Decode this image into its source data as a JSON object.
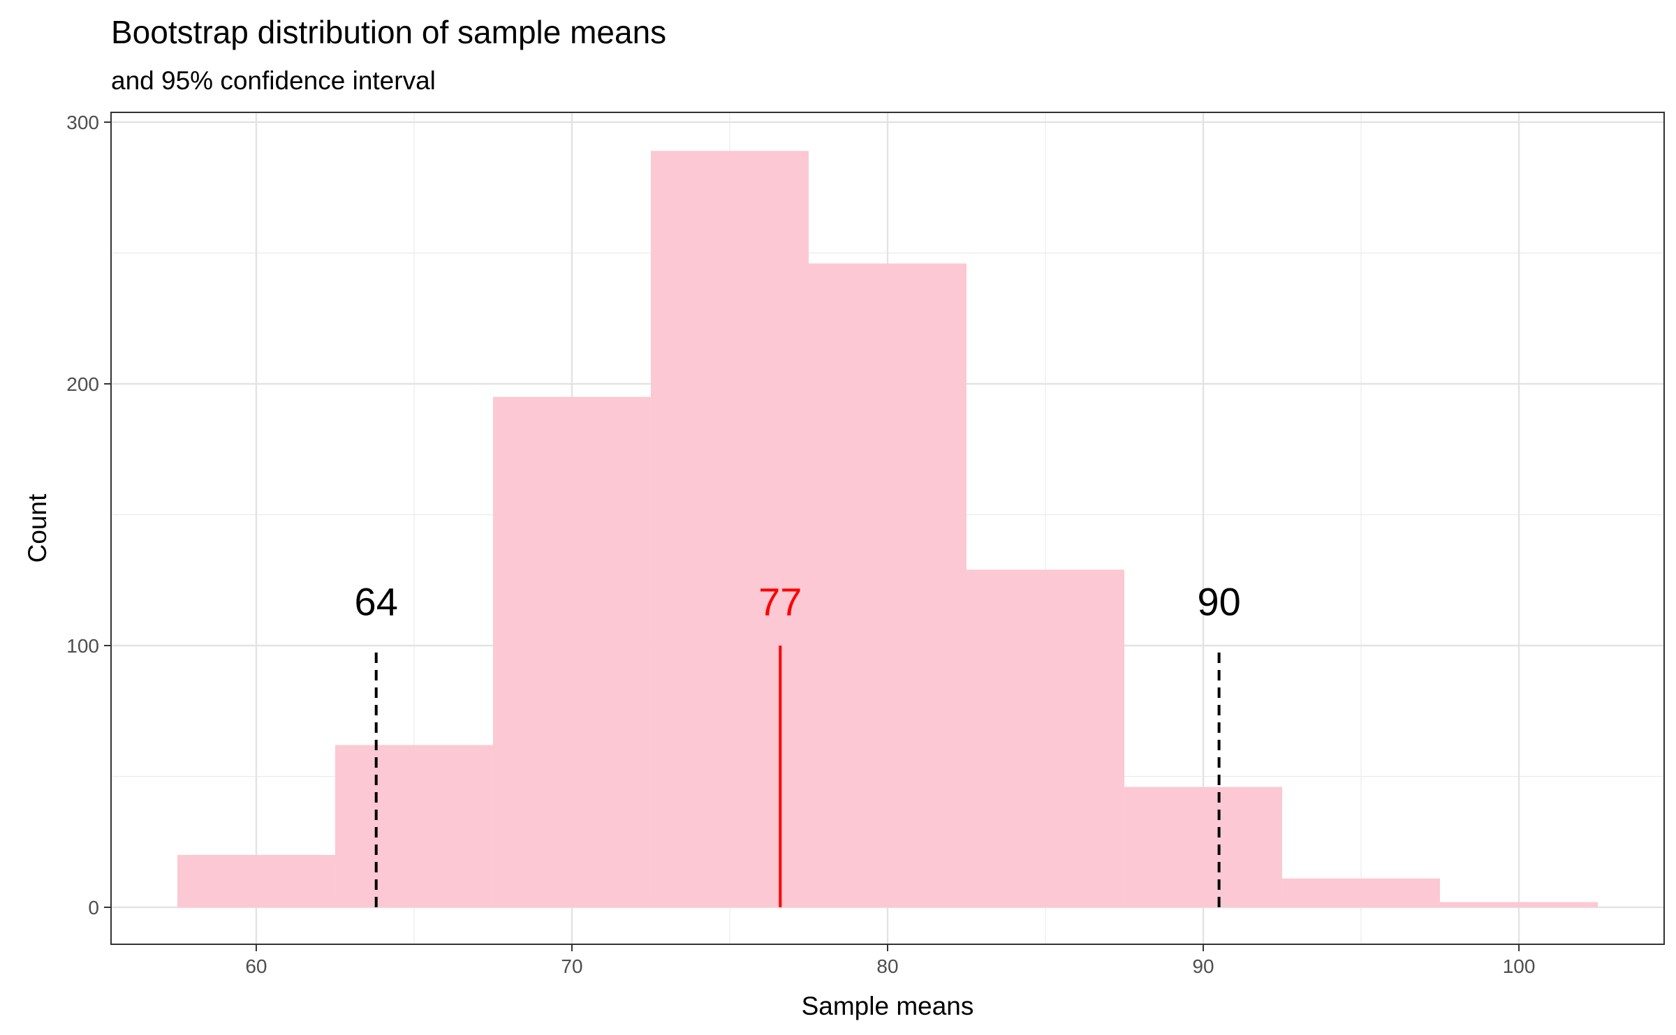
{
  "chart_data": {
    "type": "bar",
    "title": "Bootstrap distribution of sample means",
    "subtitle": "and 95% confidence interval",
    "xlabel": "Sample means",
    "ylabel": "Count",
    "xlim": [
      55.4,
      104.6
    ],
    "ylim": [
      -13.8,
      300
    ],
    "x_ticks": [
      60,
      70,
      80,
      90,
      100
    ],
    "y_ticks": [
      0,
      100,
      200,
      300
    ],
    "x_tick_labels": [
      "60",
      "70",
      "80",
      "90",
      "100"
    ],
    "y_tick_labels": [
      "0",
      "100",
      "200",
      "300"
    ],
    "grid": true,
    "bins": [
      {
        "x0": 57.5,
        "x1": 62.5,
        "count": 20
      },
      {
        "x0": 62.5,
        "x1": 67.5,
        "count": 62
      },
      {
        "x0": 67.5,
        "x1": 72.5,
        "count": 195
      },
      {
        "x0": 72.5,
        "x1": 77.5,
        "count": 289
      },
      {
        "x0": 77.5,
        "x1": 82.5,
        "count": 246
      },
      {
        "x0": 82.5,
        "x1": 87.5,
        "count": 129
      },
      {
        "x0": 87.5,
        "x1": 92.5,
        "count": 46
      },
      {
        "x0": 92.5,
        "x1": 97.5,
        "count": 11
      },
      {
        "x0": 97.5,
        "x1": 102.5,
        "count": 2
      }
    ],
    "bar_color": "#fcc8d3",
    "reference_lines": [
      {
        "name": "lower-ci",
        "x": 63.8,
        "y_end": 100,
        "style": "dashed",
        "color": "#000000",
        "label": "64"
      },
      {
        "name": "mean",
        "x": 76.6,
        "y_end": 100,
        "style": "solid",
        "color": "#ff0000",
        "label": "77"
      },
      {
        "name": "upper-ci",
        "x": 90.5,
        "y_end": 100,
        "style": "dashed",
        "color": "#000000",
        "label": "90"
      }
    ],
    "label_y": 117
  }
}
